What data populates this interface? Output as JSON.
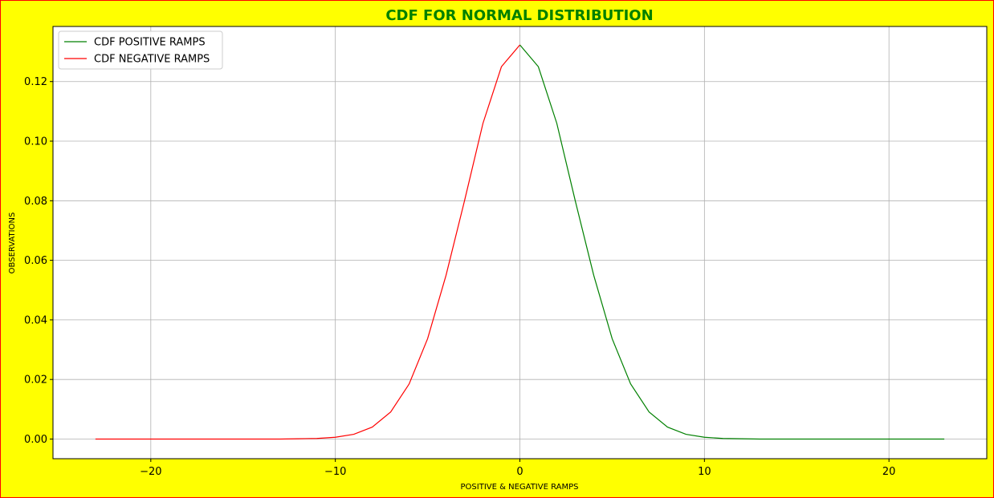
{
  "chart_data": {
    "type": "line",
    "title": "CDF FOR NORMAL DISTRIBUTION",
    "title_color": "#008000",
    "xlabel": "POSITIVE & NEGATIVE RAMPS",
    "ylabel": "OBSERVATIONS",
    "xlim": [
      -25.3,
      25.3
    ],
    "ylim": [
      -0.0066,
      0.1385
    ],
    "x_ticks": [
      -20,
      -10,
      0,
      10,
      20
    ],
    "x_tick_labels": [
      "−20",
      "−10",
      "0",
      "10",
      "20"
    ],
    "y_ticks": [
      0.0,
      0.02,
      0.04,
      0.06,
      0.08,
      0.1,
      0.12
    ],
    "y_tick_labels": [
      "0.00",
      "0.02",
      "0.04",
      "0.06",
      "0.08",
      "0.10",
      "0.12"
    ],
    "grid": true,
    "legend_position": "top-left",
    "background_color": "#ffff00",
    "border_color": "#ff0000",
    "series": [
      {
        "name": "CDF POSITIVE RAMPS",
        "color": "#008000",
        "x": [
          0,
          1,
          2,
          3,
          4,
          5,
          6,
          7,
          8,
          9,
          10,
          11,
          12,
          13,
          14,
          15,
          16,
          17,
          18,
          19,
          20,
          21,
          22,
          23
        ],
        "y": [
          0.1323,
          0.125,
          0.106,
          0.08,
          0.055,
          0.0337,
          0.0185,
          0.0091,
          0.004,
          0.0016,
          0.0006,
          0.0002,
          0.0001,
          0,
          0,
          0,
          0,
          0,
          0,
          0,
          0,
          0,
          0,
          0
        ]
      },
      {
        "name": "CDF NEGATIVE RAMPS",
        "color": "#ff0000",
        "x": [
          0,
          -1,
          -2,
          -3,
          -4,
          -5,
          -6,
          -7,
          -8,
          -9,
          -10,
          -11,
          -12,
          -13,
          -14,
          -15,
          -16,
          -17,
          -18,
          -19,
          -20,
          -21,
          -22,
          -23
        ],
        "y": [
          0.1323,
          0.125,
          0.106,
          0.08,
          0.055,
          0.0337,
          0.0185,
          0.0091,
          0.004,
          0.0016,
          0.0006,
          0.0002,
          0.0001,
          0,
          0,
          0,
          0,
          0,
          0,
          0,
          0,
          0,
          0,
          0
        ]
      }
    ]
  }
}
